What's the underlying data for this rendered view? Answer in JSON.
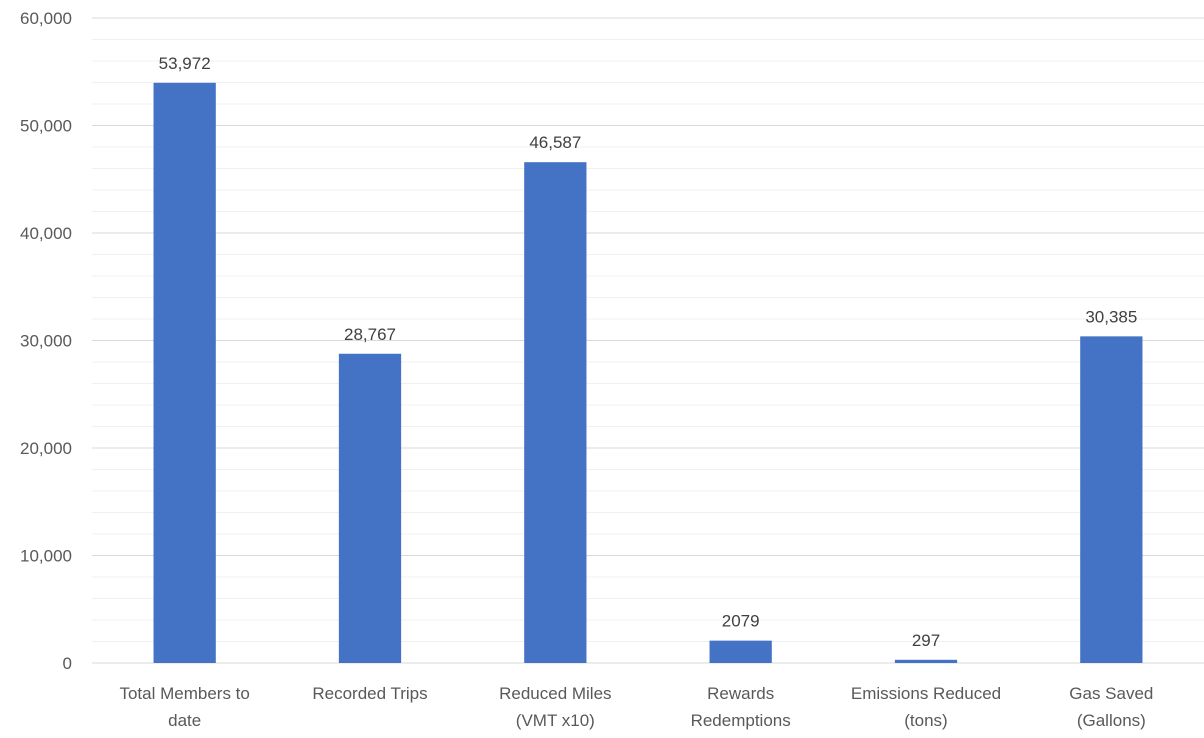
{
  "chart_data": {
    "type": "bar",
    "categories": [
      [
        "Total Members to",
        "date"
      ],
      [
        "Recorded Trips"
      ],
      [
        "Reduced Miles",
        "(VMT x10)"
      ],
      [
        "Rewards",
        "Redemptions"
      ],
      [
        "Emissions Reduced",
        "(tons)"
      ],
      [
        "Gas Saved",
        "(Gallons)"
      ]
    ],
    "values": [
      53972,
      28767,
      46587,
      2079,
      297,
      30385
    ],
    "data_labels": [
      "53,972",
      "28,767",
      "46,587",
      "2079",
      "297",
      "30,385"
    ],
    "ylim": [
      0,
      60000
    ],
    "y_ticks": [
      "0",
      "10,000",
      "20,000",
      "30,000",
      "40,000",
      "50,000",
      "60,000"
    ],
    "grid": true,
    "colors": {
      "bar": "#4472C4",
      "grid": "#D9D9D9",
      "minor_grid": "#F0F0F0"
    }
  }
}
